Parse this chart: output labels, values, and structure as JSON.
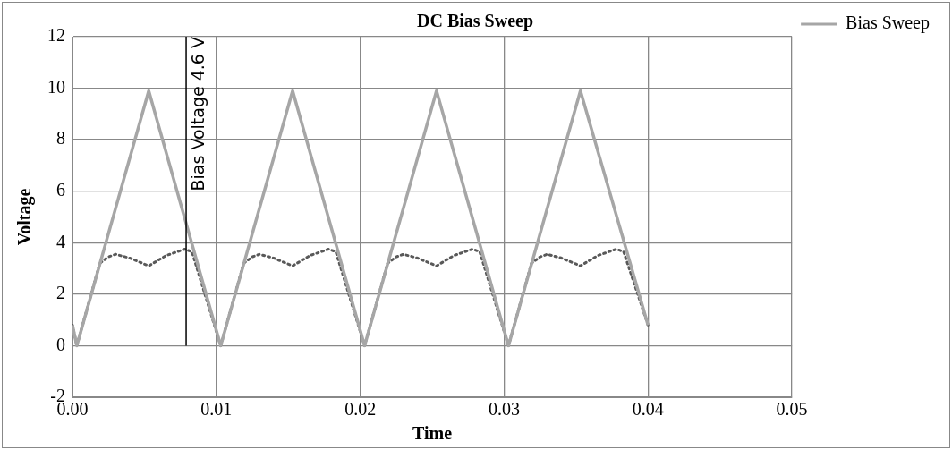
{
  "chart_data": {
    "type": "line",
    "title": "DC Bias Sweep",
    "xlabel": "Time",
    "ylabel": "Voltage",
    "xlim": [
      0,
      0.05
    ],
    "xticks": [
      {
        "value": 0,
        "label": "0.00"
      },
      0.01,
      0.02,
      0.03,
      0.04,
      0.05
    ],
    "ylim": [
      -2,
      12
    ],
    "yticks": [
      -2,
      0,
      2,
      4,
      6,
      8,
      10,
      12
    ],
    "grid": true,
    "legend": "top right",
    "marker": "none",
    "series": [
      {
        "name": "Bias Sweep",
        "color": "#a6a6a6",
        "line_style": "solid",
        "x": [
          0,
          0.0003,
          0.0053,
          0.0103,
          0.0153,
          0.0203,
          0.0253,
          0.0303,
          0.0353,
          0.04
        ],
        "values": [
          0.8,
          0,
          9.9,
          0,
          9.9,
          0,
          9.9,
          0,
          9.9,
          0.8
        ]
      },
      {
        "color": "#595959",
        "line_style": "dotted",
        "x": [
          0,
          0.0003,
          0.0019,
          0.0025,
          0.003,
          0.004,
          0.0053,
          0.0065,
          0.0078,
          0.0083,
          0.0103,
          0.0119,
          0.0125,
          0.013,
          0.014,
          0.0153,
          0.0165,
          0.0178,
          0.0183,
          0.0203,
          0.0219,
          0.0225,
          0.023,
          0.024,
          0.0253,
          0.0265,
          0.0278,
          0.0283,
          0.0303,
          0.0319,
          0.0325,
          0.033,
          0.034,
          0.0353,
          0.0365,
          0.0378,
          0.0383,
          0.04
        ],
        "values": [
          0.8,
          0,
          3.2,
          3.45,
          3.55,
          3.4,
          3.1,
          3.5,
          3.75,
          3.65,
          0,
          3.2,
          3.45,
          3.55,
          3.4,
          3.1,
          3.5,
          3.75,
          3.65,
          0,
          3.2,
          3.45,
          3.55,
          3.4,
          3.1,
          3.5,
          3.75,
          3.65,
          0,
          3.2,
          3.45,
          3.55,
          3.4,
          3.1,
          3.5,
          3.75,
          3.65,
          0.8
        ]
      }
    ],
    "ref_lines": [
      {
        "axis": "x",
        "value": 0.0079,
        "label": "Bias Voltage 4.6 V",
        "color": "#000000"
      }
    ]
  }
}
